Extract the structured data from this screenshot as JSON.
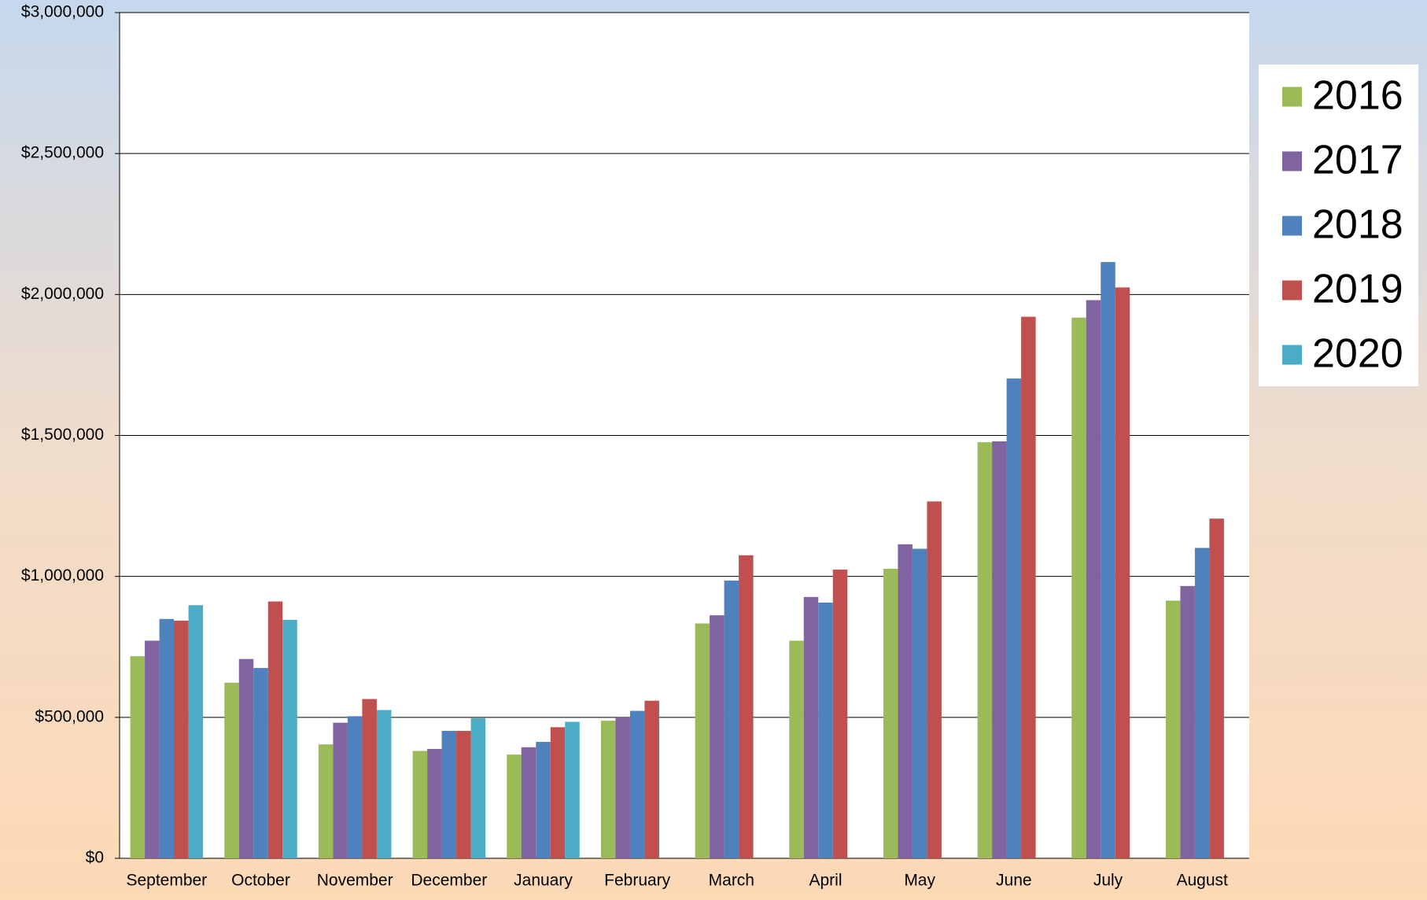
{
  "chart_data": {
    "type": "bar",
    "categories": [
      "September",
      "October",
      "November",
      "December",
      "January",
      "February",
      "March",
      "April",
      "May",
      "June",
      "July",
      "August"
    ],
    "series": [
      {
        "name": "2016",
        "color": "#9bbb59",
        "values": [
          717000,
          623000,
          404000,
          381000,
          368000,
          488000,
          833000,
          772000,
          1027000,
          1476000,
          1918000,
          914000
        ]
      },
      {
        "name": "2017",
        "color": "#8064a2",
        "values": [
          772000,
          707000,
          481000,
          388000,
          394000,
          500000,
          862000,
          927000,
          1114000,
          1479000,
          1980000,
          966000
        ]
      },
      {
        "name": "2018",
        "color": "#4f81bd",
        "values": [
          849000,
          675000,
          504000,
          452000,
          413000,
          523000,
          985000,
          907000,
          1098000,
          1702000,
          2115000,
          1101000
        ]
      },
      {
        "name": "2019",
        "color": "#c0504d",
        "values": [
          843000,
          911000,
          565000,
          452000,
          465000,
          559000,
          1075000,
          1024000,
          1266000,
          1921000,
          2025000,
          1205000
        ]
      },
      {
        "name": "2020",
        "color": "#4bacc6",
        "values": [
          898000,
          846000,
          526000,
          497000,
          484000,
          null,
          null,
          null,
          null,
          null,
          null,
          null
        ]
      }
    ],
    "ylim": [
      0,
      3000000
    ],
    "yticks": [
      {
        "value": 0,
        "label": "$0"
      },
      {
        "value": 500000,
        "label": "$500,000"
      },
      {
        "value": 1000000,
        "label": "$1,000,000"
      },
      {
        "value": 1500000,
        "label": "$1,500,000"
      },
      {
        "value": 2000000,
        "label": "$2,000,000"
      },
      {
        "value": 2500000,
        "label": "$2,500,000"
      },
      {
        "value": 3000000,
        "label": "$3,000,000"
      }
    ],
    "grid": true,
    "legend": "right"
  }
}
